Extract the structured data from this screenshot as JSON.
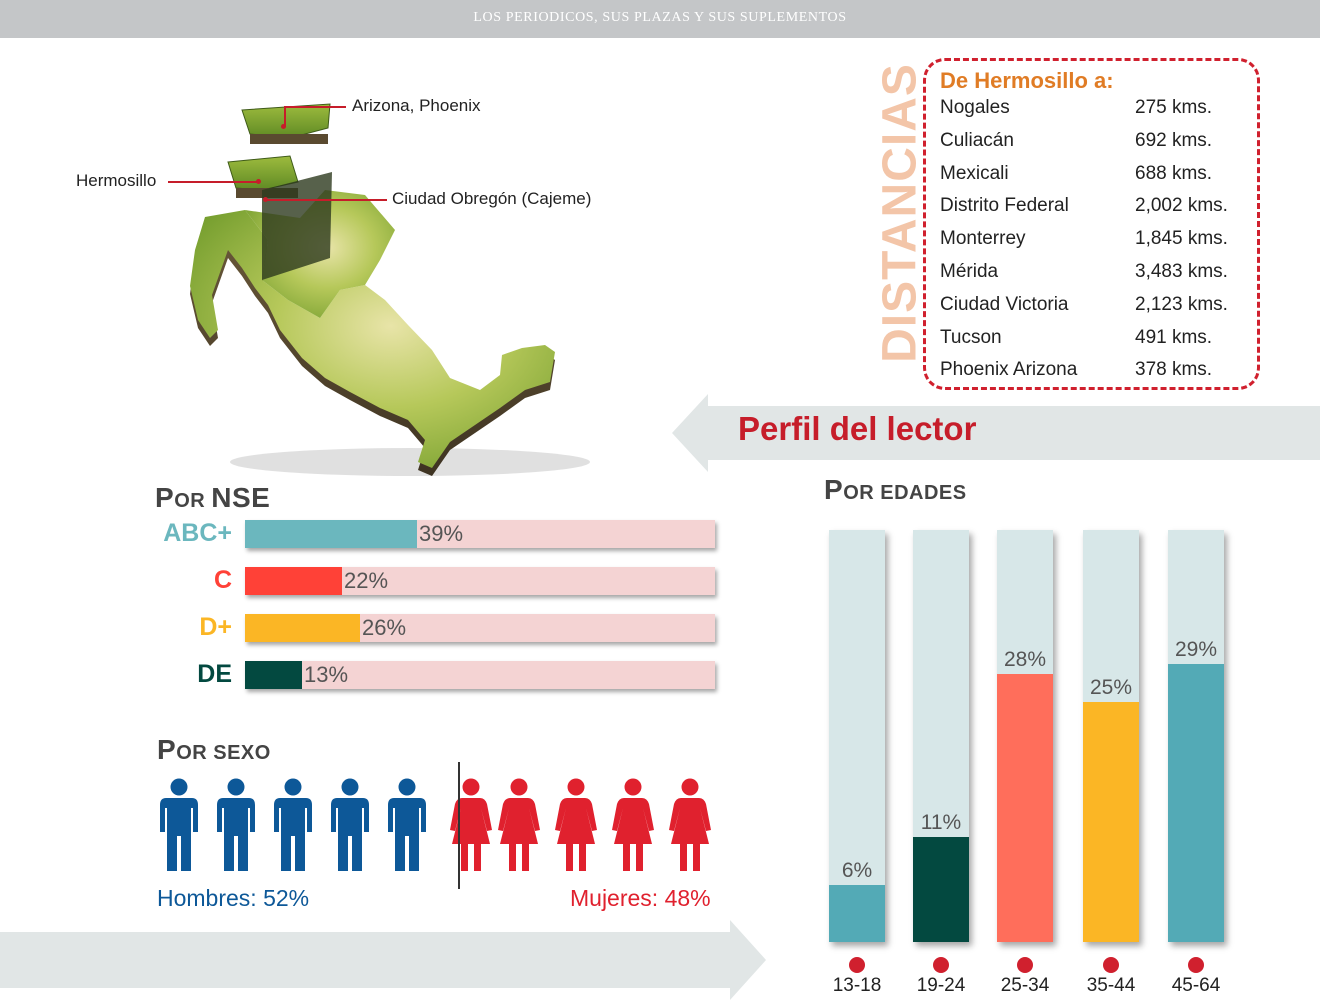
{
  "header": {
    "title": "LOS PERIODICOS, SUS PLAZAS Y SUS SUPLEMENTOS"
  },
  "map": {
    "labels": {
      "arizona": "Arizona, Phoenix",
      "hermosillo": "Hermosillo",
      "obregon": "Ciudad Obregón (Cajeme)"
    },
    "colors": {
      "land": "#8fb23a",
      "leader": "#c61d2a"
    }
  },
  "distances": {
    "vertical_title": "DISTANCIAS",
    "heading": "De Hermosillo a:",
    "rows": [
      {
        "city": "Nogales",
        "km": "275 kms."
      },
      {
        "city": "Culiacán",
        "km": "692 kms."
      },
      {
        "city": "Mexicali",
        "km": "688 kms."
      },
      {
        "city": "Distrito Federal",
        "km": "2,002 kms."
      },
      {
        "city": "Monterrey",
        "km": "1,845 kms."
      },
      {
        "city": "Mérida",
        "km": "3,483 kms."
      },
      {
        "city": "Ciudad Victoria",
        "km": "2,123 kms."
      },
      {
        "city": "Tucson",
        "km": "491 kms."
      },
      {
        "city": "Phoenix Arizona",
        "km": "378 kms."
      }
    ]
  },
  "perfil": {
    "title": "Perfil del lector"
  },
  "nse": {
    "title_first": "P",
    "title_rest": "OR",
    "title_big": "NSE",
    "items": [
      {
        "label": "ABC+",
        "value_text": "39%",
        "value": 39,
        "color": "#6bb7be"
      },
      {
        "label": "C",
        "value_text": "22%",
        "value": 22,
        "color": "#ff4137"
      },
      {
        "label": "D+",
        "value_text": "26%",
        "value": 26,
        "color": "#fbb625"
      },
      {
        "label": "DE",
        "value_text": "13%",
        "value": 13,
        "color": "#034940"
      }
    ]
  },
  "sexo": {
    "title_first": "P",
    "title_rest": "OR SEXO",
    "hombres": "Hombres: 52%",
    "mujeres": "Mujeres: 48%",
    "hombres_value": 52,
    "mujeres_value": 48,
    "colors": {
      "male": "#0d5898",
      "female": "#e0212e"
    }
  },
  "edades": {
    "title_first": "P",
    "title_rest": "OR EDADES",
    "items": [
      {
        "label": "13-18",
        "value_text": "6%",
        "value": 6,
        "color": "#53aab6"
      },
      {
        "label": "19-24",
        "value_text": "11%",
        "value": 11,
        "color": "#034940"
      },
      {
        "label": "25-34",
        "value_text": "28%",
        "value": 28,
        "color": "#ff6e5b"
      },
      {
        "label": "35-44",
        "value_text": "25%",
        "value": 25,
        "color": "#fbb625"
      },
      {
        "label": "45-64",
        "value_text": "29%",
        "value": 29,
        "color": "#53aab6"
      }
    ]
  }
}
